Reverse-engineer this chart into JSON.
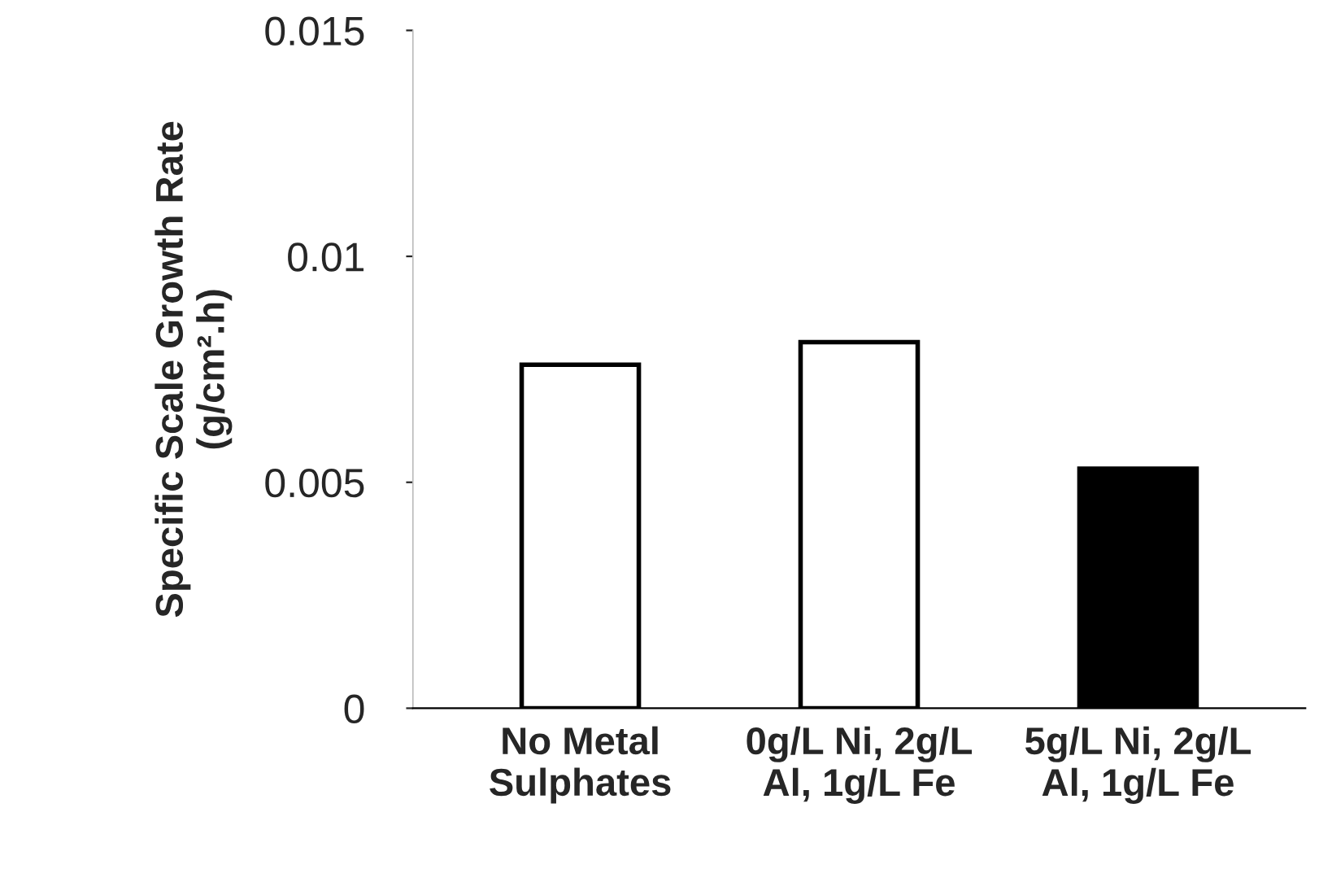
{
  "chart_data": {
    "type": "bar",
    "ylabel": "Specific Scale Growth Rate\n(g/cm².h)",
    "categories": [
      "No Metal\nSulphates",
      "0g/L Ni, 2g/L\nAl, 1g/L Fe",
      "5g/L Ni, 2g/L\nAl, 1g/L Fe"
    ],
    "values": [
      0.0076,
      0.0081,
      0.0053
    ],
    "colors": [
      "#ffffff",
      "#ffffff",
      "#000000"
    ],
    "ylim": [
      0,
      0.015
    ],
    "yticks": [
      0,
      {
        "value": 0.005,
        "label": "0.005"
      },
      {
        "value": 0.01,
        "label": "0.01"
      },
      {
        "value": 0.015,
        "label": "0.015"
      }
    ],
    "grid": false
  }
}
